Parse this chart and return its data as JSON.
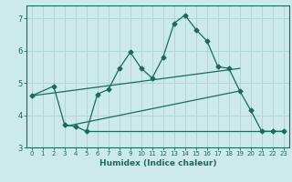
{
  "title": "",
  "xlabel": "Humidex (Indice chaleur)",
  "ylabel": "",
  "bg_color": "#cceae8",
  "line_color": "#1a6b5a",
  "grid_color": "#a8d4d0",
  "xlim": [
    -0.5,
    23.5
  ],
  "ylim": [
    3.0,
    7.4
  ],
  "yticks": [
    3,
    4,
    5,
    6,
    7
  ],
  "xticks": [
    0,
    1,
    2,
    3,
    4,
    5,
    6,
    7,
    8,
    9,
    10,
    11,
    12,
    13,
    14,
    15,
    16,
    17,
    18,
    19,
    20,
    21,
    22,
    23
  ],
  "line1_x": [
    0,
    2,
    3,
    4,
    5,
    6,
    7,
    8,
    9,
    10,
    11,
    12,
    13,
    14,
    15,
    16,
    17,
    18,
    19,
    20,
    21,
    22,
    23
  ],
  "line1_y": [
    4.6,
    4.9,
    3.7,
    3.65,
    3.5,
    4.65,
    4.8,
    5.45,
    5.95,
    5.45,
    5.15,
    5.8,
    6.85,
    7.1,
    6.65,
    6.3,
    5.5,
    5.45,
    4.75,
    4.15,
    3.5,
    3.5,
    3.5
  ],
  "line2_x": [
    0,
    19
  ],
  "line2_y": [
    4.6,
    5.45
  ],
  "line3_x": [
    3,
    19
  ],
  "line3_y": [
    3.65,
    4.75
  ],
  "line4_x": [
    5,
    16,
    23
  ],
  "line4_y": [
    3.5,
    3.5,
    3.5
  ]
}
